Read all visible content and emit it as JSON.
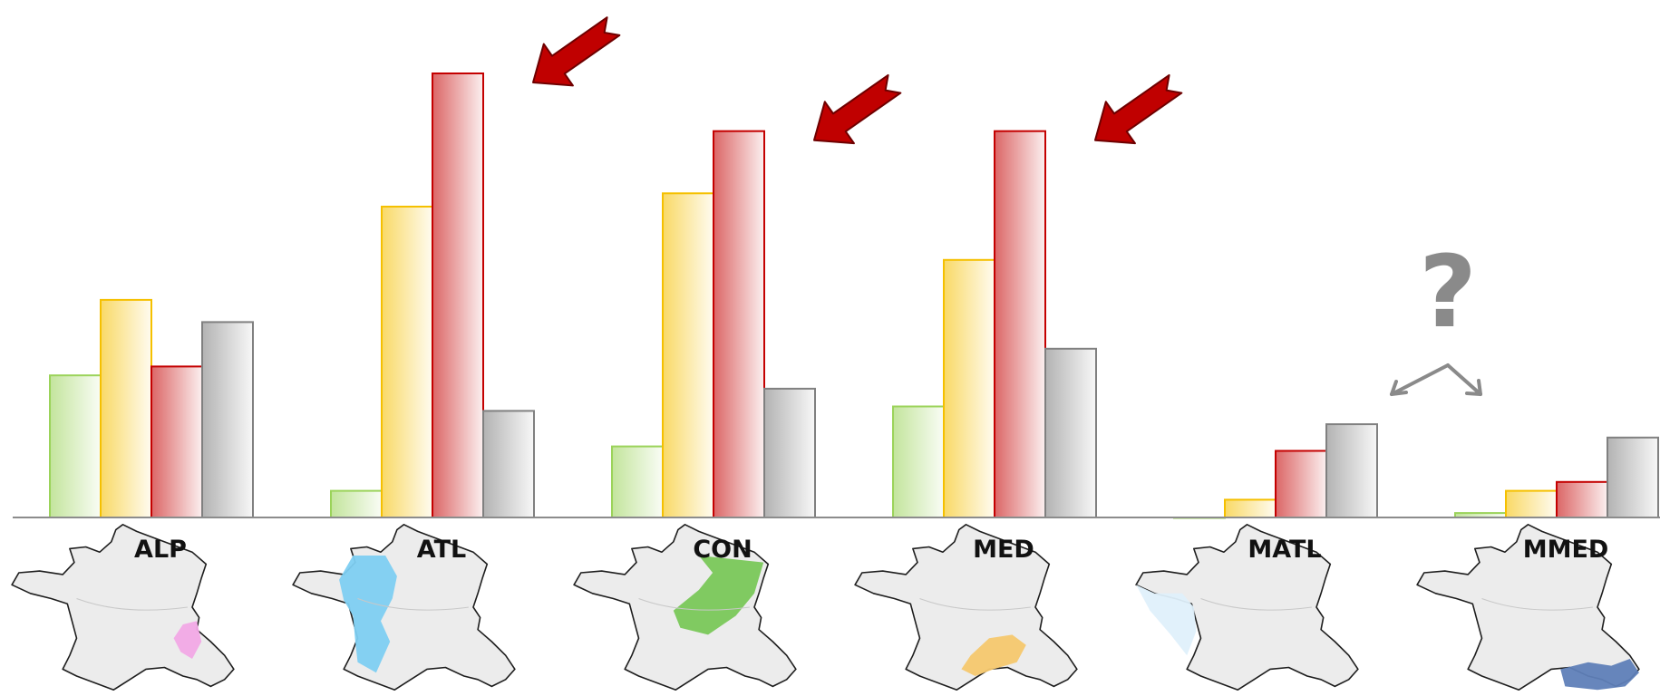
{
  "chart_data": {
    "type": "bar",
    "title": "",
    "xlabel": "",
    "ylabel": "",
    "categories": [
      "ALP",
      "ATL",
      "CON",
      "MED",
      "MATL",
      "MMED"
    ],
    "ylim": [
      0,
      100
    ],
    "grid": false,
    "legend": "none",
    "series": [
      {
        "color": "#9bd35a",
        "values": [
          32,
          6,
          16,
          25,
          0,
          1
        ]
      },
      {
        "color": "#f5c000",
        "values": [
          49,
          70,
          73,
          58,
          4,
          6
        ]
      },
      {
        "color": "#c40000",
        "values": [
          34,
          100,
          87,
          87,
          15,
          8
        ]
      },
      {
        "color": "#808080",
        "values": [
          44,
          24,
          29,
          38,
          21,
          18
        ]
      }
    ],
    "annotations": {
      "red_arrows_point_to": [
        "ATL",
        "CON",
        "MED"
      ],
      "question_mark": "?",
      "question_arrows_point_to": [
        "MATL",
        "MMED"
      ]
    },
    "maps": [
      {
        "region": "ALP",
        "color": "#f2a9e6"
      },
      {
        "region": "ATL",
        "color": "#7ecff2"
      },
      {
        "region": "CON",
        "color": "#7ac85a"
      },
      {
        "region": "MED",
        "color": "#f5c86e"
      },
      {
        "region": "MATL",
        "color": "#dff0fb"
      },
      {
        "region": "MMED",
        "color": "#5f80b8"
      }
    ]
  }
}
